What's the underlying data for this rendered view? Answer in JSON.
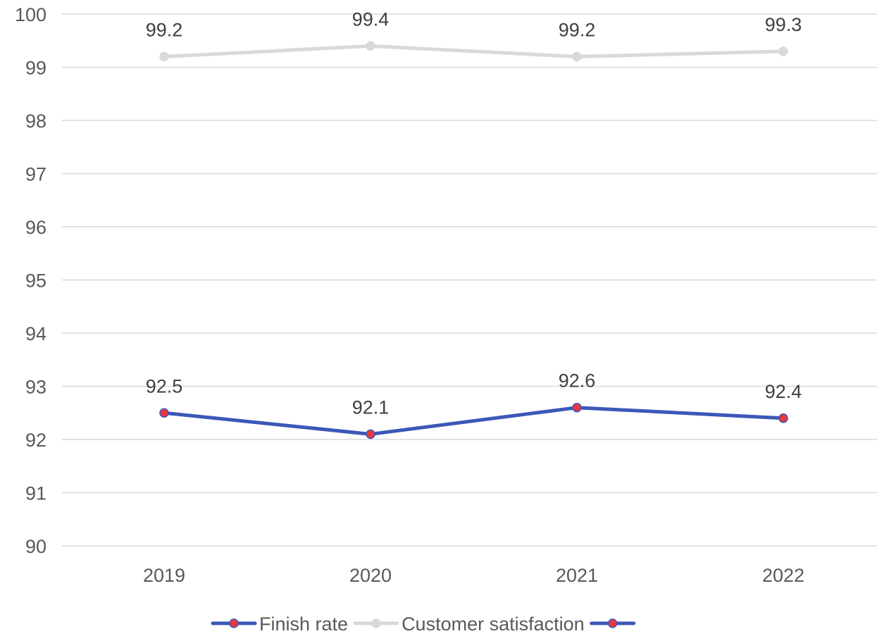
{
  "chart_data": {
    "type": "line",
    "title": "",
    "xlabel": "",
    "ylabel": "",
    "categories": [
      "2019",
      "2020",
      "2021",
      "2022"
    ],
    "ylim": [
      90,
      100
    ],
    "y_ticks": [
      "90",
      "91",
      "92",
      "93",
      "94",
      "95",
      "96",
      "97",
      "98",
      "99",
      "100"
    ],
    "grid": "horizontal",
    "legend_position": "bottom",
    "series": [
      {
        "name": "Finish rate",
        "values": [
          92.5,
          92.1,
          92.6,
          92.4
        ],
        "labels": [
          "92.5",
          "92.1",
          "92.6",
          "92.4"
        ],
        "color": "#3B58B8",
        "marker_color": "#E8383D"
      },
      {
        "name": "Customer satisfaction",
        "values": [
          99.2,
          99.4,
          99.2,
          99.3
        ],
        "labels": [
          "99.2",
          "99.4",
          "99.2",
          "99.3"
        ],
        "color": "#D9D9D9",
        "marker_color": "#D9D9D9"
      }
    ],
    "legend_entries": [
      {
        "label": "Finish rate",
        "color": "#3B58B8",
        "marker_color": "#E8383D"
      },
      {
        "label": "Customer satisfaction",
        "color": "#D9D9D9",
        "marker_color": "#D9D9D9"
      },
      {
        "label": "",
        "color": "#3B58B8",
        "marker_color": "#E8383D"
      }
    ]
  }
}
